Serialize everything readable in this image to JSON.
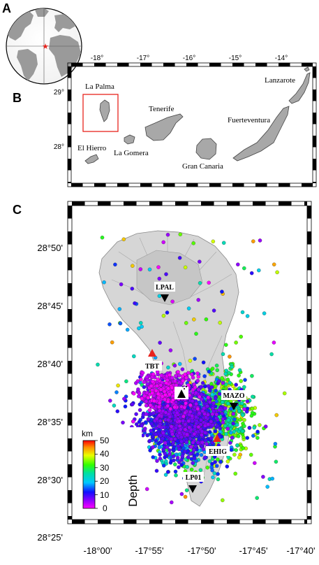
{
  "panel_a": {
    "letter": "A"
  },
  "panel_b": {
    "letter": "B",
    "lon_ticks": [
      "-18°",
      "-17°",
      "-16°",
      "-15°",
      "-14°"
    ],
    "lat_ticks": [
      "29°",
      "28°"
    ],
    "islands": {
      "la_palma": "La Palma",
      "el_hierro": "El Hierro",
      "la_gomera": "La Gomera",
      "tenerife": "Tenerife",
      "gran_canaria": "Gran Canaria",
      "fuerteventura": "Fuerteventura",
      "lanzarote": "Lanzarote"
    }
  },
  "panel_c": {
    "letter": "C",
    "lat_ticks": [
      "28°50'",
      "28°45'",
      "28°40'",
      "28°35'",
      "28°30'",
      "28°25'"
    ],
    "lon_ticks": [
      "-18°00'",
      "-17°55'",
      "-17°50'",
      "-17°45'",
      "-17°40'"
    ],
    "stations": {
      "lpal": "LPAL",
      "tbt": "TBT",
      "mazo": "MAZO",
      "ehig": "EHIG",
      "lp01": "LP01"
    },
    "colorbar": {
      "unit": "km",
      "title": "Depth",
      "ticks": [
        "50",
        "40",
        "30",
        "20",
        "10",
        "0"
      ],
      "min": 0,
      "max": 50
    },
    "colors": {
      "station_black": "#000000",
      "station_red": "#e8231c",
      "frame": "#000000"
    }
  }
}
